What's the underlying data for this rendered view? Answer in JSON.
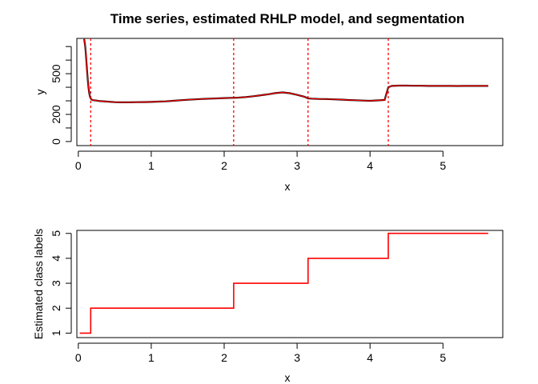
{
  "chart_data": [
    {
      "type": "line",
      "title": "Time series, estimated RHLP model, and segmentation",
      "xlabel": "x",
      "ylabel": "y",
      "xlim": [
        -0.02,
        5.82
      ],
      "ylim": [
        -30,
        760
      ],
      "x_ticks": [
        0,
        1,
        2,
        3,
        4,
        5
      ],
      "y_ticks": [
        0,
        100,
        200,
        300,
        400,
        500,
        600,
        700
      ],
      "y_tick_labels": [
        "0",
        "",
        "200",
        "",
        "",
        "500",
        "",
        ""
      ],
      "grid": false,
      "colors": {
        "series": "#000000",
        "model": "#ff0000",
        "segments": "#ff0000"
      },
      "series": [
        {
          "x": [
            0.08,
            0.095,
            0.11,
            0.12,
            0.13,
            0.14,
            0.15,
            0.16,
            0.17,
            0.18,
            0.2,
            0.25,
            0.3,
            0.4,
            0.5,
            0.6,
            0.7,
            0.8,
            0.9,
            1.0,
            1.1,
            1.2,
            1.3,
            1.4,
            1.5,
            1.6,
            1.7,
            1.8,
            1.9,
            2.0,
            2.1,
            2.13,
            2.2,
            2.3,
            2.4,
            2.5,
            2.6,
            2.7,
            2.8,
            2.9,
            3.0,
            3.1,
            3.15,
            3.2,
            3.3,
            3.4,
            3.5,
            3.6,
            3.7,
            3.8,
            3.9,
            4.0,
            4.1,
            4.2,
            4.25,
            4.3,
            4.4,
            4.5,
            4.6,
            4.7,
            4.8,
            4.9,
            5.0,
            5.1,
            5.2,
            5.3,
            5.4,
            5.5,
            5.62
          ],
          "values": [
            755,
            700,
            600,
            520,
            450,
            395,
            355,
            330,
            318,
            310,
            305,
            302,
            298,
            294,
            290,
            289,
            289,
            290,
            291,
            292,
            294,
            296,
            300,
            304,
            308,
            311,
            314,
            316,
            318,
            320,
            322,
            322,
            324,
            328,
            334,
            341,
            348,
            357,
            362,
            356,
            344,
            330,
            318,
            316,
            314,
            313,
            311,
            309,
            306,
            304,
            302,
            300,
            303,
            306,
            400,
            410,
            412,
            412,
            411,
            411,
            410,
            410,
            410,
            410,
            409,
            410,
            410,
            410,
            410
          ]
        }
      ],
      "segment_boundaries": [
        0.17,
        2.13,
        3.15,
        4.25
      ]
    },
    {
      "type": "line",
      "xlabel": "x",
      "ylabel": "Estimated class labels",
      "xlim": [
        -0.02,
        5.82
      ],
      "ylim": [
        0.82,
        5.12
      ],
      "x_ticks": [
        0,
        1,
        2,
        3,
        4,
        5
      ],
      "y_ticks": [
        1,
        2,
        3,
        4,
        5
      ],
      "grid": false,
      "colors": {
        "series": "#ff0000"
      },
      "series": [
        {
          "x": [
            0.02,
            0.17,
            0.17,
            2.13,
            2.13,
            3.15,
            3.15,
            4.25,
            4.25,
            5.62
          ],
          "values": [
            1,
            1,
            2,
            2,
            3,
            3,
            4,
            4,
            5,
            5
          ]
        }
      ]
    }
  ]
}
